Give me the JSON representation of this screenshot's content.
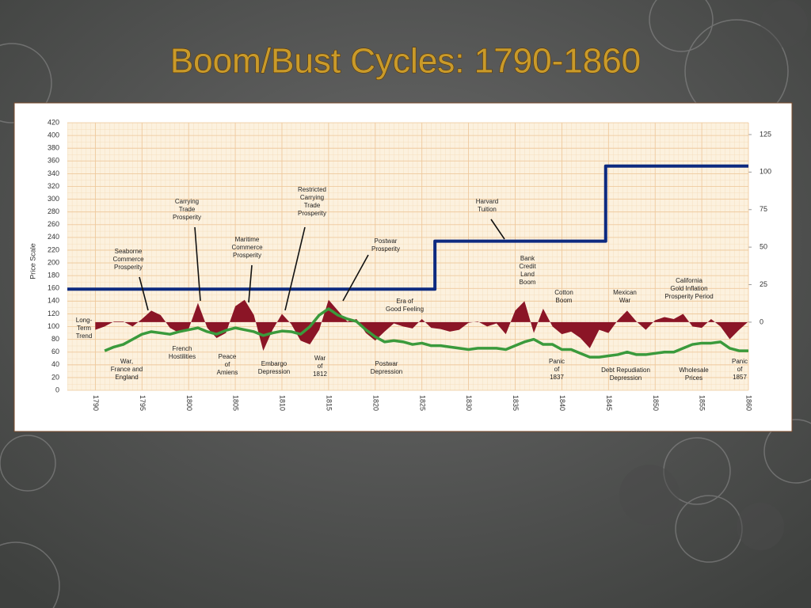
{
  "title": "Boom/Bust Cycles:  1790-1860",
  "chart_data": {
    "type": "line",
    "y_label": "Price Scale",
    "x": [
      1790,
      1791,
      1792,
      1793,
      1794,
      1795,
      1796,
      1797,
      1798,
      1799,
      1800,
      1801,
      1802,
      1803,
      1804,
      1805,
      1806,
      1807,
      1808,
      1809,
      1810,
      1811,
      1812,
      1813,
      1814,
      1815,
      1816,
      1817,
      1818,
      1819,
      1820,
      1821,
      1822,
      1823,
      1824,
      1825,
      1826,
      1827,
      1828,
      1829,
      1830,
      1831,
      1832,
      1833,
      1834,
      1835,
      1836,
      1837,
      1838,
      1839,
      1840,
      1841,
      1842,
      1843,
      1844,
      1845,
      1846,
      1847,
      1848,
      1849,
      1850,
      1851,
      1852,
      1853,
      1854,
      1855,
      1856,
      1857,
      1858,
      1859,
      1860
    ],
    "xlim": [
      1787,
      1860
    ],
    "xticks": [
      1790,
      1795,
      1800,
      1805,
      1810,
      1815,
      1820,
      1825,
      1830,
      1835,
      1840,
      1845,
      1850,
      1855,
      1860
    ],
    "ylim": [
      0,
      420
    ],
    "yticks": [
      0,
      20,
      40,
      60,
      80,
      100,
      120,
      140,
      160,
      180,
      200,
      220,
      240,
      260,
      280,
      300,
      320,
      340,
      360,
      380,
      400,
      420
    ],
    "y2lim": [
      -45.4,
      132.9
    ],
    "y2ticks": [
      0,
      25,
      50,
      75,
      100,
      125
    ],
    "grid": true,
    "series": [
      {
        "type": "area",
        "axis": "y2",
        "color": "#8b1526",
        "values": [
          -5.1,
          -2.9,
          0.4,
          0.4,
          -2.9,
          2.1,
          7.7,
          4.7,
          -3.8,
          -7.2,
          -4.6,
          12.8,
          -3.8,
          -10.6,
          -7.2,
          10.6,
          14.9,
          4.7,
          -19.1,
          -5.1,
          5.5,
          -1.3,
          -12.3,
          -14.8,
          -5.1,
          14.9,
          7.7,
          0.4,
          2.1,
          -7.2,
          -12.3,
          -6.3,
          -0.8,
          -2.9,
          -4.2,
          2.1,
          -3.8,
          -4.6,
          -6.3,
          -5.1,
          -0.4,
          0.4,
          -2.9,
          -0.8,
          -8.0,
          7.7,
          14.0,
          -7.2,
          9.0,
          -2.9,
          -8.0,
          -6.3,
          -10.6,
          -17.4,
          -5.1,
          -7.2,
          1.3,
          7.7,
          0.4,
          -5.1,
          1.3,
          3.4,
          2.1,
          5.5,
          -2.9,
          -3.8,
          2.1,
          -2.9,
          -11.4,
          -5.1,
          0.4
        ]
      },
      {
        "type": "line",
        "color": "#3a9a3c",
        "values": [
          null,
          62,
          68,
          72,
          80,
          88,
          92,
          90,
          88,
          92,
          95,
          98,
          92,
          88,
          94,
          98,
          95,
          92,
          86,
          90,
          93,
          92,
          88,
          100,
          118,
          128,
          118,
          112,
          108,
          95,
          84,
          76,
          78,
          76,
          72,
          74,
          70,
          70,
          68,
          66,
          64,
          66,
          66,
          66,
          64,
          70,
          76,
          80,
          72,
          72,
          64,
          64,
          58,
          52,
          52,
          54,
          56,
          60,
          56,
          56,
          58,
          60,
          60,
          66,
          72,
          74,
          74,
          76,
          66,
          62,
          62
        ]
      },
      {
        "type": "step",
        "axis": "y2",
        "color": "#0d2a80",
        "x": [
          1787,
          1826.4,
          1826.4,
          1844.7,
          1844.7,
          1860
        ],
        "values": [
          22,
          22,
          54,
          54,
          104,
          104
        ]
      }
    ],
    "annotations": [
      [
        "Seaborne",
        "Commerce",
        "Prosperity"
      ],
      [
        "Carrying",
        "Trade",
        "Prosperity"
      ],
      [
        "Maritime",
        "Commerce",
        "Prosperity"
      ],
      [
        "Restricted",
        "Carrying",
        "Trade",
        "Prosperity"
      ],
      [
        "Postwar",
        "Prosperity"
      ],
      [
        "Harvard",
        "Tuition"
      ],
      [
        "Bank",
        "Credit",
        "Land",
        "Boom"
      ],
      [
        "Cotton",
        "Boom"
      ],
      [
        "Mexican",
        "War"
      ],
      [
        "California",
        "Gold Inflation",
        "Prosperity Period"
      ],
      [
        "Era of",
        "Good Feeling"
      ],
      [
        "Long-",
        "Term",
        "Trend"
      ],
      [
        "War,",
        "France and",
        "England"
      ],
      [
        "French",
        "Hostilities"
      ],
      [
        "Peace",
        "of",
        "Amiens"
      ],
      [
        "Embargo",
        "Depression"
      ],
      [
        "War",
        "of",
        "1812"
      ],
      [
        "Postwar",
        "Depression"
      ],
      [
        "Panic",
        "of",
        "1837"
      ],
      [
        "Debt Repudiation",
        "Depression"
      ],
      [
        "Wholesale",
        "Prices"
      ],
      [
        "Panic",
        "of",
        "1857"
      ]
    ]
  }
}
